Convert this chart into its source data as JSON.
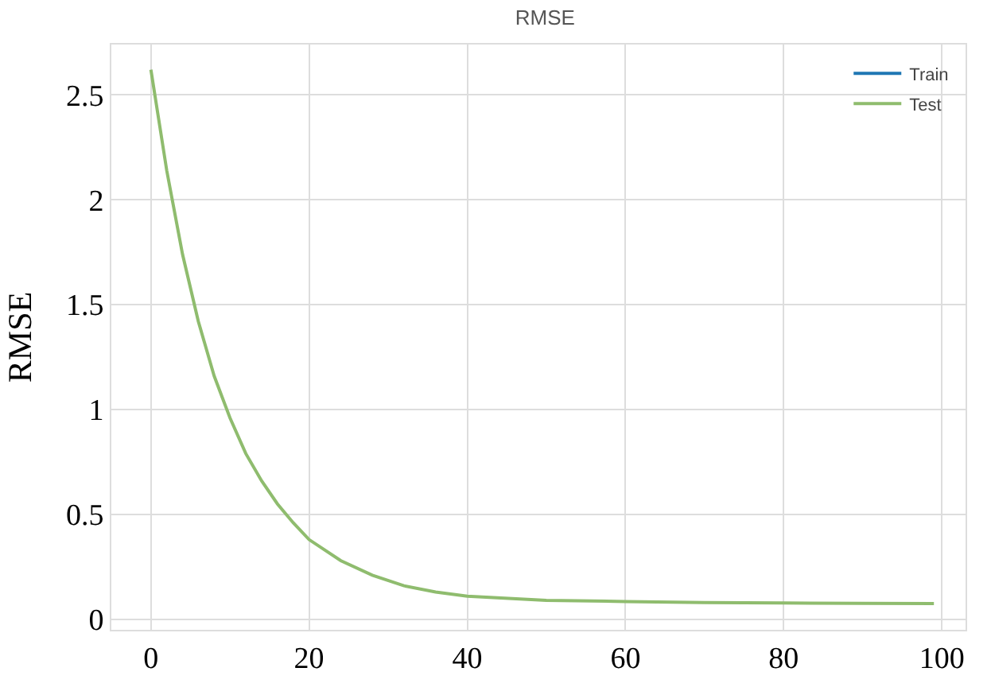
{
  "chart_data": {
    "type": "line",
    "title": "RMSE",
    "ylabel": "RMSE",
    "x": [
      0,
      2,
      4,
      6,
      8,
      10,
      12,
      14,
      16,
      18,
      20,
      24,
      28,
      32,
      36,
      40,
      50,
      60,
      70,
      80,
      90,
      99
    ],
    "series": [
      {
        "name": "Train",
        "color": "#1f77b4",
        "values": [
          null,
          null,
          null,
          null,
          null,
          null,
          null,
          null,
          null,
          null,
          null,
          null,
          null,
          null,
          null,
          null,
          null,
          null,
          null,
          null,
          null,
          null
        ]
      },
      {
        "name": "Test",
        "color": "#8fbc6e",
        "values": [
          2.62,
          2.14,
          1.74,
          1.42,
          1.16,
          0.96,
          0.79,
          0.66,
          0.55,
          0.46,
          0.38,
          0.28,
          0.21,
          0.16,
          0.13,
          0.11,
          0.09,
          0.085,
          0.08,
          0.078,
          0.076,
          0.075
        ]
      }
    ],
    "xlim": [
      -5,
      103
    ],
    "xticks": [
      0,
      20,
      40,
      60,
      80,
      100
    ],
    "ylim": [
      -0.05,
      2.74
    ],
    "yticks": [
      0,
      0.5,
      1,
      1.5,
      2,
      2.5
    ],
    "grid": true,
    "legend": "top right",
    "marker": "none",
    "line_style": "solid"
  }
}
